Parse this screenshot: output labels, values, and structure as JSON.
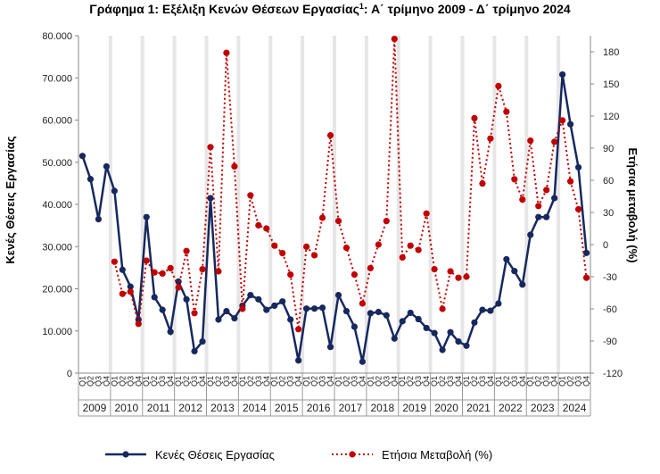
{
  "chart_data": {
    "type": "line",
    "title": "Γράφημα 1: Εξέλιξη Κενών Θέσεων Εργασίας",
    "title_superscript": "1",
    "title_suffix": ": Α΄ τρίμηνο 2009 - Δ΄ τρίμηνο 2024",
    "ylabel_left": "Κενές Θέσεις Εργασίας",
    "ylabel_right": "Ετήσια μεταβολή (%)",
    "ylim_left": [
      0,
      80000
    ],
    "yticks_left": [
      "0",
      "10.000",
      "20.000",
      "30.000",
      "40.000",
      "50.000",
      "60.000",
      "70.000",
      "80.000"
    ],
    "ylim_right": [
      -120,
      195
    ],
    "yticks_right": [
      "-120",
      "-90",
      "-60",
      "-30",
      "0",
      "30",
      "60",
      "90",
      "120",
      "150",
      "180"
    ],
    "years": [
      "2009",
      "2010",
      "2011",
      "2012",
      "2013",
      "2014",
      "2015",
      "2016",
      "2017",
      "2018",
      "2019",
      "2020",
      "2021",
      "2022",
      "2023",
      "2024"
    ],
    "quarters": [
      "Q1",
      "Q2",
      "Q3",
      "Q4"
    ],
    "series": [
      {
        "name": "Κενές Θέσεις Εργασίας",
        "axis": "left",
        "color": "#17285e",
        "style": "solid",
        "values": [
          51500,
          46000,
          36500,
          49000,
          43200,
          24500,
          20500,
          12700,
          37000,
          18000,
          15000,
          9800,
          21700,
          17500,
          5200,
          7500,
          41500,
          12700,
          14700,
          13000,
          16000,
          18500,
          17500,
          15000,
          16000,
          17000,
          12700,
          3000,
          15300,
          15300,
          15500,
          6200,
          18500,
          14700,
          11000,
          2700,
          14200,
          14500,
          13700,
          8200,
          12300,
          14300,
          12800,
          10700,
          9500,
          5500,
          9700,
          7500,
          6500,
          12000,
          15000,
          14800,
          16500,
          27000,
          24200,
          21000,
          32800,
          37000,
          37000,
          41500,
          70800,
          59000,
          48800,
          28500
        ]
      },
      {
        "name": "Ετήσια Μεταβολή (%)",
        "axis": "right",
        "color": "#c00000",
        "style": "dotted",
        "values": [
          null,
          null,
          null,
          null,
          -16,
          -46,
          -44,
          -74,
          -15,
          -26,
          -27,
          -22,
          -40,
          -6,
          -64,
          -23,
          91,
          -25,
          179,
          73,
          -60,
          46,
          18,
          15,
          -1,
          -8,
          -28,
          -79,
          -2,
          -10,
          25,
          102,
          22,
          -3,
          -28,
          -55,
          -22,
          0,
          22,
          192,
          -12,
          -1,
          -5,
          29,
          -23,
          -60,
          -25,
          -31,
          -30,
          118,
          57,
          99,
          148,
          124,
          61,
          42,
          97,
          36,
          51,
          96,
          116,
          59,
          33,
          -31
        ]
      }
    ],
    "legend_position": "bottom",
    "grid": false
  }
}
